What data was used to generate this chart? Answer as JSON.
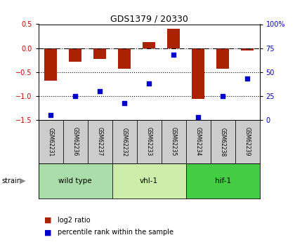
{
  "title": "GDS1379 / 20330",
  "samples": [
    "GSM62231",
    "GSM62236",
    "GSM62237",
    "GSM62232",
    "GSM62233",
    "GSM62235",
    "GSM62234",
    "GSM62238",
    "GSM62239"
  ],
  "log2_ratios": [
    -0.68,
    -0.28,
    -0.23,
    -0.43,
    0.13,
    0.4,
    -1.06,
    -0.43,
    -0.05
  ],
  "percentile_ranks": [
    5,
    25,
    30,
    18,
    38,
    68,
    3,
    25,
    43
  ],
  "groups": [
    {
      "label": "wild type",
      "start": 0,
      "end": 3,
      "color": "#aaddaa"
    },
    {
      "label": "vhl-1",
      "start": 3,
      "end": 6,
      "color": "#cceeaa"
    },
    {
      "label": "hif-1",
      "start": 6,
      "end": 9,
      "color": "#44cc44"
    }
  ],
  "bar_color": "#aa2200",
  "scatter_color": "#0000cc",
  "ylim_left": [
    -1.5,
    0.5
  ],
  "ylim_right": [
    0,
    100
  ],
  "yticks_left": [
    -1.5,
    -1.0,
    -0.5,
    0.0,
    0.5
  ],
  "yticks_right": [
    0,
    25,
    50,
    75,
    100
  ],
  "hline_y": 0.0,
  "dotted_lines": [
    -0.5,
    -1.0
  ],
  "bar_width": 0.5,
  "left_tick_color": "#cc0000",
  "right_tick_color": "#0000cc"
}
